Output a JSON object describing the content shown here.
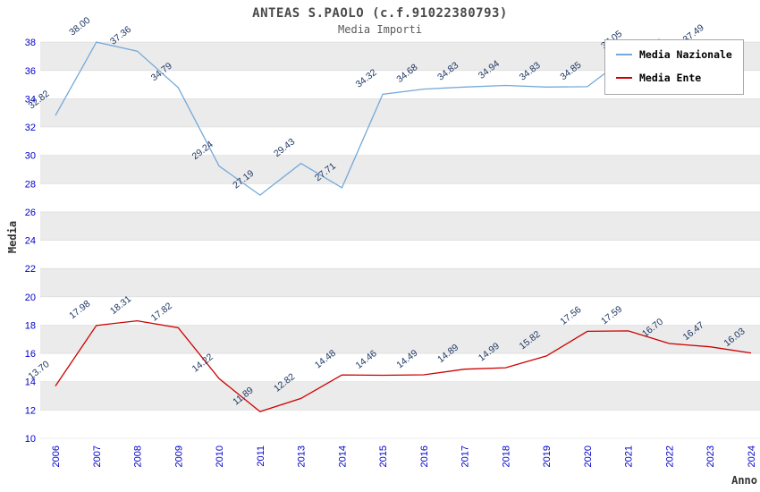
{
  "chart_data": {
    "type": "line",
    "title": "ANTEAS S.PAOLO (c.f.91022380793)",
    "subtitle": "Media Importi",
    "xlabel": "Anno",
    "ylabel": "Media",
    "ylim": [
      10,
      38.45
    ],
    "yticks": [
      10,
      12,
      14,
      16,
      18,
      20,
      22,
      24,
      26,
      28,
      30,
      32,
      34,
      36,
      38
    ],
    "categories": [
      "2006",
      "2007",
      "2008",
      "2009",
      "2010",
      "2011",
      "2013",
      "2014",
      "2015",
      "2016",
      "2017",
      "2018",
      "2019",
      "2020",
      "2021",
      "2022",
      "2023",
      "2024"
    ],
    "series": [
      {
        "name": "Media Nazionale",
        "color": "#74a9d8",
        "values": [
          32.82,
          38.0,
          37.36,
          34.79,
          29.24,
          27.19,
          29.43,
          27.71,
          34.32,
          34.68,
          34.83,
          34.94,
          34.83,
          34.85,
          37.05,
          36.46,
          37.49,
          null
        ]
      },
      {
        "name": "Media Ente",
        "color": "#cc0000",
        "values": [
          13.7,
          17.98,
          18.31,
          17.82,
          14.22,
          11.89,
          12.82,
          14.48,
          14.46,
          14.49,
          14.89,
          14.99,
          15.82,
          17.56,
          17.59,
          16.7,
          16.47,
          16.03
        ]
      }
    ],
    "grid": "alternating-bands",
    "legend_position": "top-right",
    "band_color": "#ebebeb",
    "gridline_color": "#d9d9d9",
    "tick_color": "#0000cc",
    "label_color": "#1f3864"
  }
}
